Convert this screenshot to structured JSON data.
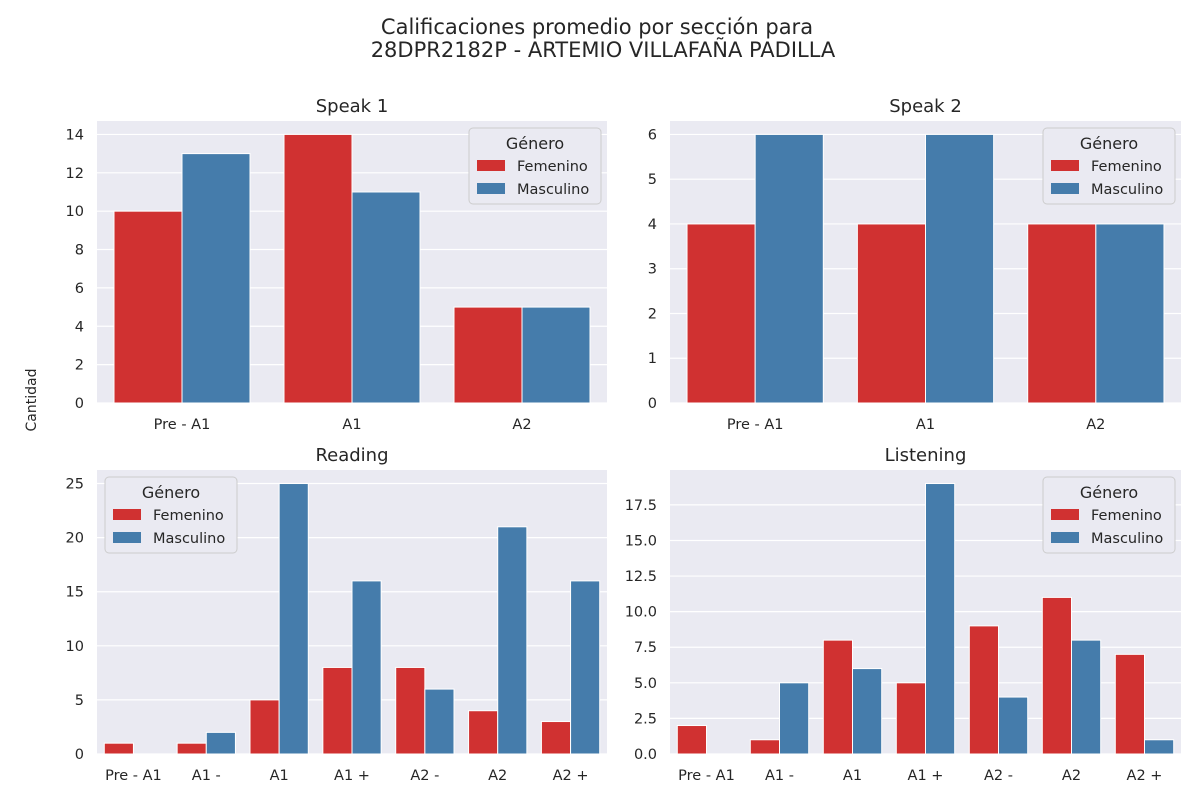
{
  "figure": {
    "title_line1": "Calificaciones promedio por sección para",
    "title_line2": "28DPR2182P - ARTEMIO VILLAFAÑA PADILLA",
    "ylabel": "Cantidad"
  },
  "colors": {
    "Femenino": "#d03131",
    "Masculino": "#457cab",
    "panel_bg": "#eaeaf2",
    "grid": "#ffffff"
  },
  "chart_data": [
    {
      "type": "bar",
      "title": "Speak 1",
      "categories": [
        "Pre - A1",
        "A1",
        "A2"
      ],
      "series": [
        {
          "name": "Femenino",
          "values": [
            10,
            14,
            5
          ]
        },
        {
          "name": "Masculino",
          "values": [
            13,
            11,
            5
          ]
        }
      ],
      "ylim": [
        0,
        14.7
      ],
      "yticks": [
        "0",
        "2",
        "4",
        "6",
        "8",
        "10",
        "12",
        "14"
      ],
      "ytick_values": [
        0,
        2,
        4,
        6,
        8,
        10,
        12,
        14
      ],
      "legend": {
        "title": "Género",
        "position": "top-right"
      },
      "grid": true
    },
    {
      "type": "bar",
      "title": "Speak 2",
      "categories": [
        "Pre - A1",
        "A1",
        "A2"
      ],
      "series": [
        {
          "name": "Femenino",
          "values": [
            4,
            4,
            4
          ]
        },
        {
          "name": "Masculino",
          "values": [
            6,
            6,
            4
          ]
        }
      ],
      "ylim": [
        0,
        6.3
      ],
      "yticks": [
        "0",
        "1",
        "2",
        "3",
        "4",
        "5",
        "6"
      ],
      "ytick_values": [
        0,
        1,
        2,
        3,
        4,
        5,
        6
      ],
      "legend": {
        "title": "Género",
        "position": "top-right"
      },
      "grid": true
    },
    {
      "type": "bar",
      "title": "Reading",
      "categories": [
        "Pre - A1",
        "A1 -",
        "A1",
        "A1 +",
        "A2 -",
        "A2",
        "A2 +"
      ],
      "series": [
        {
          "name": "Femenino",
          "values": [
            1,
            1,
            5,
            8,
            8,
            4,
            3
          ]
        },
        {
          "name": "Masculino",
          "values": [
            0,
            2,
            25,
            16,
            6,
            21,
            16
          ]
        }
      ],
      "ylim": [
        0,
        26.25
      ],
      "yticks": [
        "0",
        "5",
        "10",
        "15",
        "20",
        "25"
      ],
      "ytick_values": [
        0,
        5,
        10,
        15,
        20,
        25
      ],
      "legend": {
        "title": "Género",
        "position": "top-left"
      },
      "grid": true
    },
    {
      "type": "bar",
      "title": "Listening",
      "categories": [
        "Pre - A1",
        "A1 -",
        "A1",
        "A1 +",
        "A2 -",
        "A2",
        "A2 +"
      ],
      "series": [
        {
          "name": "Femenino",
          "values": [
            2,
            1,
            8,
            5,
            9,
            11,
            7
          ]
        },
        {
          "name": "Masculino",
          "values": [
            0,
            5,
            6,
            19,
            4,
            8,
            1
          ]
        }
      ],
      "ylim": [
        0,
        19.95
      ],
      "yticks": [
        "0.0",
        "2.5",
        "5.0",
        "7.5",
        "10.0",
        "12.5",
        "15.0",
        "17.5"
      ],
      "ytick_values": [
        0,
        2.5,
        5,
        7.5,
        10,
        12.5,
        15,
        17.5
      ],
      "legend": {
        "title": "Género",
        "position": "top-right"
      },
      "grid": true
    }
  ]
}
